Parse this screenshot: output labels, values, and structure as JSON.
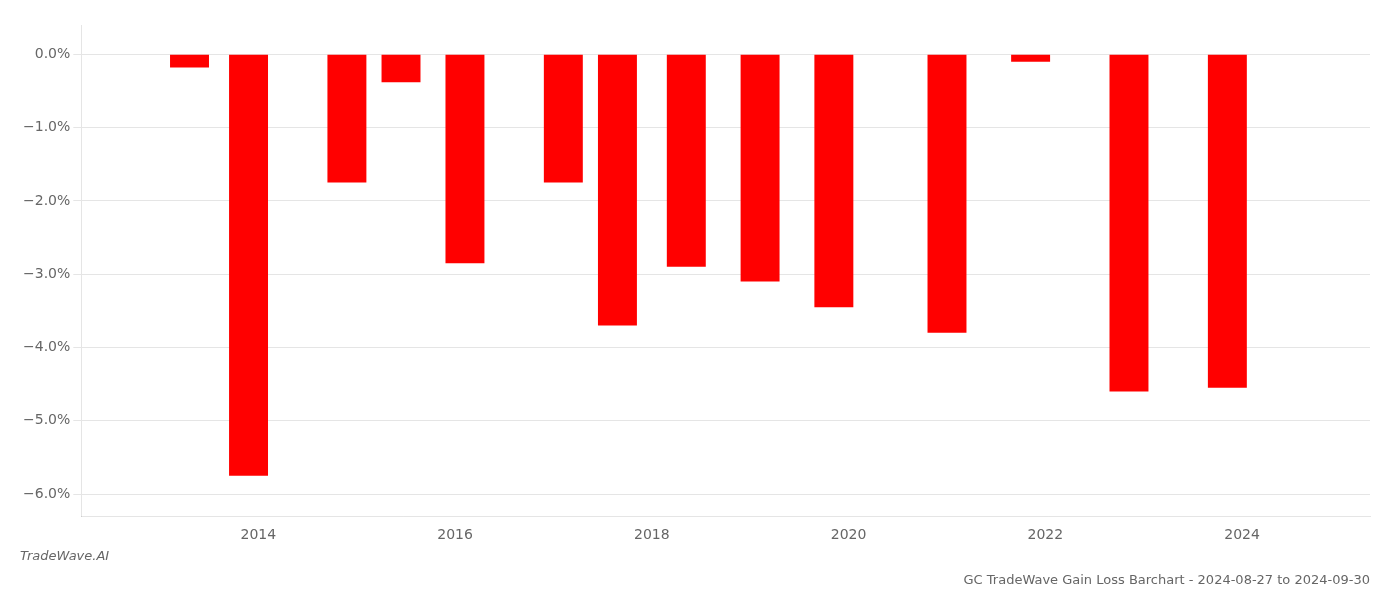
{
  "chart_data": {
    "type": "bar",
    "title": "GC TradeWave Gain Loss Barchart - 2024-08-27 to 2024-09-30",
    "annotations": [
      "TradeWave.AI"
    ],
    "x": [
      2013.3,
      2013.9,
      2014.9,
      2015.45,
      2016.1,
      2017.1,
      2017.65,
      2018.35,
      2019.1,
      2019.85,
      2021.0,
      2021.85,
      2022.85,
      2023.85
    ],
    "values": [
      -0.18,
      -5.75,
      -1.75,
      -0.38,
      -2.85,
      -1.75,
      -3.7,
      -2.9,
      -3.1,
      -3.45,
      -3.8,
      -0.1,
      -4.6,
      -4.55
    ],
    "color": "#ff0000",
    "xlim": [
      2012.2,
      2025.3
    ],
    "xticks": [
      2014,
      2016,
      2018,
      2020,
      2022,
      2024
    ],
    "ylim": [
      -6.3,
      0.4
    ],
    "yticks": [
      {
        "value": 0.0,
        "label": "0.0%"
      },
      {
        "value": -1.0,
        "label": "−1.0%"
      },
      {
        "value": -2.0,
        "label": "−2.0%"
      },
      {
        "value": -3.0,
        "label": "−3.0%"
      },
      {
        "value": -4.0,
        "label": "−4.0%"
      },
      {
        "value": -5.0,
        "label": "−5.0%"
      },
      {
        "value": -6.0,
        "label": "−6.0%"
      }
    ],
    "grid": "y"
  }
}
